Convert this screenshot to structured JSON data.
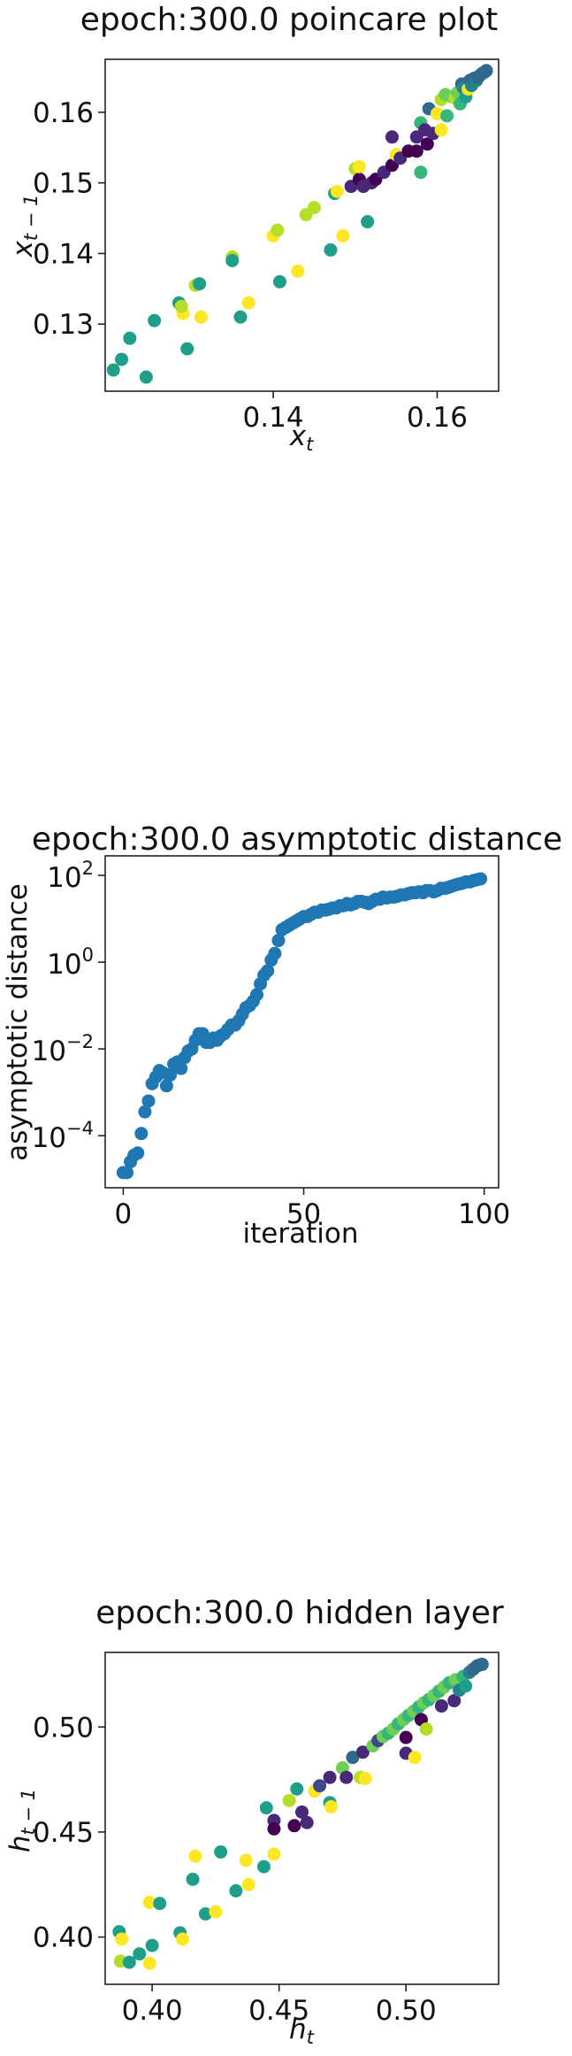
{
  "palette": [
    "#440154",
    "#482878",
    "#3e4989",
    "#31688e",
    "#26828e",
    "#1f9e89",
    "#35b779",
    "#6ece58",
    "#b5de2b",
    "#fde725"
  ],
  "chart_data": [
    {
      "type": "scatter",
      "title": "epoch:300.0 poincare plot",
      "xlabel": "x",
      "xlabel_sub": "t",
      "ylabel": "x",
      "ylabel_sub": "t − 1",
      "xlim": [
        0.1195,
        0.1675
      ],
      "ylim": [
        0.1205,
        0.1675
      ],
      "xticks": [
        0.14,
        0.16
      ],
      "xtick_labels": [
        "0.14",
        "0.16"
      ],
      "yticks": [
        0.13,
        0.14,
        0.15,
        0.16
      ],
      "ytick_labels": [
        "0.13",
        "0.14",
        "0.15",
        "0.16"
      ],
      "points": [
        {
          "x": 0.1205,
          "y": 0.1235,
          "c": 5
        },
        {
          "x": 0.1215,
          "y": 0.125,
          "c": 5
        },
        {
          "x": 0.1225,
          "y": 0.128,
          "c": 5
        },
        {
          "x": 0.1245,
          "y": 0.1225,
          "c": 5
        },
        {
          "x": 0.1255,
          "y": 0.1305,
          "c": 5
        },
        {
          "x": 0.1285,
          "y": 0.133,
          "c": 5
        },
        {
          "x": 0.1295,
          "y": 0.1265,
          "c": 5
        },
        {
          "x": 0.129,
          "y": 0.1315,
          "c": 9
        },
        {
          "x": 0.1288,
          "y": 0.1325,
          "c": 8
        },
        {
          "x": 0.1305,
          "y": 0.1355,
          "c": 8
        },
        {
          "x": 0.131,
          "y": 0.1357,
          "c": 5
        },
        {
          "x": 0.1312,
          "y": 0.131,
          "c": 9
        },
        {
          "x": 0.135,
          "y": 0.1395,
          "c": 8
        },
        {
          "x": 0.135,
          "y": 0.139,
          "c": 5
        },
        {
          "x": 0.136,
          "y": 0.131,
          "c": 5
        },
        {
          "x": 0.137,
          "y": 0.133,
          "c": 9
        },
        {
          "x": 0.14,
          "y": 0.1425,
          "c": 9
        },
        {
          "x": 0.1405,
          "y": 0.1433,
          "c": 8
        },
        {
          "x": 0.1408,
          "y": 0.136,
          "c": 5
        },
        {
          "x": 0.143,
          "y": 0.1375,
          "c": 9
        },
        {
          "x": 0.144,
          "y": 0.1455,
          "c": 8
        },
        {
          "x": 0.145,
          "y": 0.1465,
          "c": 8
        },
        {
          "x": 0.147,
          "y": 0.1405,
          "c": 5
        },
        {
          "x": 0.1475,
          "y": 0.1485,
          "c": 5
        },
        {
          "x": 0.1478,
          "y": 0.1488,
          "c": 9
        },
        {
          "x": 0.1485,
          "y": 0.1425,
          "c": 9
        },
        {
          "x": 0.1495,
          "y": 0.1495,
          "c": 1
        },
        {
          "x": 0.15,
          "y": 0.152,
          "c": 8
        },
        {
          "x": 0.1505,
          "y": 0.1505,
          "c": 0
        },
        {
          "x": 0.1505,
          "y": 0.1523,
          "c": 9
        },
        {
          "x": 0.151,
          "y": 0.1495,
          "c": 1
        },
        {
          "x": 0.1515,
          "y": 0.1445,
          "c": 5
        },
        {
          "x": 0.152,
          "y": 0.15,
          "c": 1
        },
        {
          "x": 0.1525,
          "y": 0.1505,
          "c": 0
        },
        {
          "x": 0.1535,
          "y": 0.1515,
          "c": 1
        },
        {
          "x": 0.1545,
          "y": 0.1525,
          "c": 0
        },
        {
          "x": 0.1545,
          "y": 0.1565,
          "c": 1
        },
        {
          "x": 0.155,
          "y": 0.154,
          "c": 9
        },
        {
          "x": 0.1555,
          "y": 0.1535,
          "c": 1
        },
        {
          "x": 0.1565,
          "y": 0.1545,
          "c": 0
        },
        {
          "x": 0.1575,
          "y": 0.1565,
          "c": 1
        },
        {
          "x": 0.1575,
          "y": 0.1545,
          "c": 0
        },
        {
          "x": 0.158,
          "y": 0.1515,
          "c": 6
        },
        {
          "x": 0.158,
          "y": 0.1585,
          "c": 6
        },
        {
          "x": 0.1585,
          "y": 0.1575,
          "c": 1
        },
        {
          "x": 0.1588,
          "y": 0.1555,
          "c": 0
        },
        {
          "x": 0.159,
          "y": 0.1605,
          "c": 3
        },
        {
          "x": 0.1595,
          "y": 0.157,
          "c": 1
        },
        {
          "x": 0.16,
          "y": 0.1598,
          "c": 9
        },
        {
          "x": 0.1605,
          "y": 0.1618,
          "c": 8
        },
        {
          "x": 0.161,
          "y": 0.1625,
          "c": 7
        },
        {
          "x": 0.1605,
          "y": 0.1575,
          "c": 9
        },
        {
          "x": 0.1612,
          "y": 0.1595,
          "c": 6
        },
        {
          "x": 0.1618,
          "y": 0.1622,
          "c": 7
        },
        {
          "x": 0.1622,
          "y": 0.162,
          "c": 8
        },
        {
          "x": 0.1625,
          "y": 0.1628,
          "c": 7
        },
        {
          "x": 0.1628,
          "y": 0.1612,
          "c": 6
        },
        {
          "x": 0.163,
          "y": 0.164,
          "c": 3
        },
        {
          "x": 0.1632,
          "y": 0.1635,
          "c": 4
        },
        {
          "x": 0.1635,
          "y": 0.1622,
          "c": 5
        },
        {
          "x": 0.1638,
          "y": 0.1633,
          "c": 9
        },
        {
          "x": 0.164,
          "y": 0.1645,
          "c": 3
        },
        {
          "x": 0.1642,
          "y": 0.1638,
          "c": 4
        },
        {
          "x": 0.1645,
          "y": 0.1648,
          "c": 3
        },
        {
          "x": 0.1648,
          "y": 0.1645,
          "c": 4
        },
        {
          "x": 0.165,
          "y": 0.165,
          "c": 3
        },
        {
          "x": 0.1652,
          "y": 0.1652,
          "c": 3
        },
        {
          "x": 0.1655,
          "y": 0.1655,
          "c": 3
        },
        {
          "x": 0.1658,
          "y": 0.1657,
          "c": 3
        },
        {
          "x": 0.166,
          "y": 0.1659,
          "c": 3
        }
      ]
    },
    {
      "type": "scatter",
      "title": "epoch:300.0 asymptotic distance",
      "xlabel": "iteration",
      "ylabel": "asymptotic distance",
      "yscale": "log",
      "xlim": [
        -5,
        104
      ],
      "ylim_log10": [
        -5.2,
        2.45
      ],
      "xticks": [
        0,
        50,
        100
      ],
      "xtick_labels": [
        "0",
        "50",
        "100"
      ],
      "yticks_log10": [
        -4,
        -2,
        0,
        2
      ],
      "ytick_base": "10",
      "ytick_exponents": [
        "−4",
        "−2",
        "0",
        "2"
      ],
      "color": "#1f77b4",
      "x": [
        0,
        1,
        2,
        3,
        4,
        5,
        6,
        7,
        8,
        9,
        10,
        11,
        12,
        13,
        14,
        15,
        16,
        17,
        18,
        19,
        20,
        21,
        22,
        23,
        24,
        25,
        26,
        27,
        28,
        29,
        30,
        31,
        32,
        33,
        34,
        35,
        36,
        37,
        38,
        39,
        40,
        41,
        42,
        43,
        44,
        45,
        46,
        47,
        48,
        49,
        50,
        51,
        52,
        53,
        54,
        55,
        56,
        57,
        58,
        59,
        60,
        61,
        62,
        63,
        64,
        65,
        66,
        67,
        68,
        69,
        70,
        71,
        72,
        73,
        74,
        75,
        76,
        77,
        78,
        79,
        80,
        81,
        82,
        83,
        84,
        85,
        86,
        87,
        88,
        89,
        90,
        91,
        92,
        93,
        94,
        95,
        96,
        97,
        98,
        99
      ],
      "log10_y": [
        -4.85,
        -4.85,
        -4.6,
        -4.45,
        -4.4,
        -3.95,
        -3.45,
        -3.2,
        -2.8,
        -2.65,
        -2.5,
        -2.55,
        -2.85,
        -2.6,
        -2.35,
        -2.3,
        -2.45,
        -2.2,
        -2.05,
        -2.0,
        -1.8,
        -1.65,
        -1.65,
        -1.85,
        -1.85,
        -1.75,
        -1.8,
        -1.7,
        -1.65,
        -1.55,
        -1.45,
        -1.45,
        -1.35,
        -1.2,
        -1.05,
        -1.0,
        -0.9,
        -0.75,
        -0.5,
        -0.3,
        -0.2,
        0.05,
        0.2,
        0.5,
        0.75,
        0.8,
        0.85,
        0.9,
        0.95,
        1.0,
        1.05,
        1.05,
        1.1,
        1.15,
        1.15,
        1.2,
        1.2,
        1.22,
        1.25,
        1.25,
        1.3,
        1.3,
        1.35,
        1.32,
        1.35,
        1.4,
        1.4,
        1.38,
        1.35,
        1.4,
        1.45,
        1.45,
        1.5,
        1.48,
        1.5,
        1.5,
        1.52,
        1.55,
        1.55,
        1.58,
        1.6,
        1.6,
        1.62,
        1.6,
        1.65,
        1.65,
        1.62,
        1.65,
        1.7,
        1.7,
        1.72,
        1.75,
        1.78,
        1.8,
        1.82,
        1.85,
        1.85,
        1.88,
        1.9,
        1.92
      ]
    },
    {
      "type": "scatter",
      "title": "epoch:300.0 hidden layer",
      "xlabel": "h",
      "xlabel_sub": "t",
      "ylabel": "h",
      "ylabel_sub": "t − 1",
      "xlim": [
        0.3815,
        0.5365
      ],
      "ylim": [
        0.3775,
        0.5355
      ],
      "xticks": [
        0.4,
        0.45,
        0.5
      ],
      "xtick_labels": [
        "0.40",
        "0.45",
        "0.50"
      ],
      "yticks": [
        0.4,
        0.45,
        0.5
      ],
      "ytick_labels": [
        "0.40",
        "0.45",
        "0.50"
      ],
      "points": [
        {
          "x": 0.387,
          "y": 0.4025,
          "c": 5
        },
        {
          "x": 0.3875,
          "y": 0.3885,
          "c": 8
        },
        {
          "x": 0.388,
          "y": 0.399,
          "c": 9
        },
        {
          "x": 0.391,
          "y": 0.388,
          "c": 5
        },
        {
          "x": 0.395,
          "y": 0.392,
          "c": 5
        },
        {
          "x": 0.399,
          "y": 0.3875,
          "c": 9
        },
        {
          "x": 0.399,
          "y": 0.4165,
          "c": 9
        },
        {
          "x": 0.4,
          "y": 0.396,
          "c": 5
        },
        {
          "x": 0.403,
          "y": 0.416,
          "c": 5
        },
        {
          "x": 0.411,
          "y": 0.402,
          "c": 5
        },
        {
          "x": 0.412,
          "y": 0.399,
          "c": 9
        },
        {
          "x": 0.416,
          "y": 0.4275,
          "c": 5
        },
        {
          "x": 0.417,
          "y": 0.4385,
          "c": 9
        },
        {
          "x": 0.421,
          "y": 0.411,
          "c": 5
        },
        {
          "x": 0.425,
          "y": 0.412,
          "c": 9
        },
        {
          "x": 0.427,
          "y": 0.4405,
          "c": 5
        },
        {
          "x": 0.433,
          "y": 0.422,
          "c": 5
        },
        {
          "x": 0.437,
          "y": 0.4365,
          "c": 9
        },
        {
          "x": 0.438,
          "y": 0.425,
          "c": 9
        },
        {
          "x": 0.444,
          "y": 0.4335,
          "c": 5
        },
        {
          "x": 0.445,
          "y": 0.4615,
          "c": 5
        },
        {
          "x": 0.448,
          "y": 0.4555,
          "c": 1
        },
        {
          "x": 0.448,
          "y": 0.4515,
          "c": 0
        },
        {
          "x": 0.448,
          "y": 0.4395,
          "c": 9
        },
        {
          "x": 0.454,
          "y": 0.465,
          "c": 8
        },
        {
          "x": 0.456,
          "y": 0.453,
          "c": 0
        },
        {
          "x": 0.457,
          "y": 0.4705,
          "c": 5
        },
        {
          "x": 0.459,
          "y": 0.4595,
          "c": 1
        },
        {
          "x": 0.461,
          "y": 0.4545,
          "c": 1
        },
        {
          "x": 0.464,
          "y": 0.4695,
          "c": 9
        },
        {
          "x": 0.466,
          "y": 0.472,
          "c": 2
        },
        {
          "x": 0.47,
          "y": 0.476,
          "c": 1
        },
        {
          "x": 0.47,
          "y": 0.464,
          "c": 5
        },
        {
          "x": 0.4705,
          "y": 0.462,
          "c": 9
        },
        {
          "x": 0.475,
          "y": 0.4805,
          "c": 7
        },
        {
          "x": 0.4765,
          "y": 0.476,
          "c": 1
        },
        {
          "x": 0.479,
          "y": 0.4855,
          "c": 3
        },
        {
          "x": 0.482,
          "y": 0.476,
          "c": 8
        },
        {
          "x": 0.483,
          "y": 0.488,
          "c": 1
        },
        {
          "x": 0.484,
          "y": 0.4755,
          "c": 9
        },
        {
          "x": 0.487,
          "y": 0.491,
          "c": 7
        },
        {
          "x": 0.489,
          "y": 0.4935,
          "c": 2
        },
        {
          "x": 0.491,
          "y": 0.4955,
          "c": 7
        },
        {
          "x": 0.493,
          "y": 0.497,
          "c": 6
        },
        {
          "x": 0.495,
          "y": 0.499,
          "c": 7
        },
        {
          "x": 0.497,
          "y": 0.5015,
          "c": 6
        },
        {
          "x": 0.499,
          "y": 0.5035,
          "c": 7
        },
        {
          "x": 0.5,
          "y": 0.495,
          "c": 0
        },
        {
          "x": 0.5,
          "y": 0.4875,
          "c": 1
        },
        {
          "x": 0.501,
          "y": 0.5055,
          "c": 6
        },
        {
          "x": 0.503,
          "y": 0.5075,
          "c": 7
        },
        {
          "x": 0.5035,
          "y": 0.4855,
          "c": 9
        },
        {
          "x": 0.505,
          "y": 0.5095,
          "c": 6
        },
        {
          "x": 0.506,
          "y": 0.5035,
          "c": 0
        },
        {
          "x": 0.507,
          "y": 0.5115,
          "c": 7
        },
        {
          "x": 0.508,
          "y": 0.499,
          "c": 8
        },
        {
          "x": 0.509,
          "y": 0.513,
          "c": 6
        },
        {
          "x": 0.511,
          "y": 0.515,
          "c": 7
        },
        {
          "x": 0.513,
          "y": 0.517,
          "c": 6
        },
        {
          "x": 0.514,
          "y": 0.51,
          "c": 1
        },
        {
          "x": 0.515,
          "y": 0.519,
          "c": 7
        },
        {
          "x": 0.517,
          "y": 0.521,
          "c": 6
        },
        {
          "x": 0.519,
          "y": 0.5125,
          "c": 1
        },
        {
          "x": 0.5195,
          "y": 0.5225,
          "c": 7
        },
        {
          "x": 0.521,
          "y": 0.5175,
          "c": 4
        },
        {
          "x": 0.5225,
          "y": 0.524,
          "c": 6
        },
        {
          "x": 0.5235,
          "y": 0.5195,
          "c": 5
        },
        {
          "x": 0.525,
          "y": 0.526,
          "c": 4
        },
        {
          "x": 0.5265,
          "y": 0.5275,
          "c": 3
        },
        {
          "x": 0.528,
          "y": 0.529,
          "c": 3
        },
        {
          "x": 0.529,
          "y": 0.5295,
          "c": 3
        },
        {
          "x": 0.53,
          "y": 0.5298,
          "c": 3
        }
      ]
    }
  ]
}
